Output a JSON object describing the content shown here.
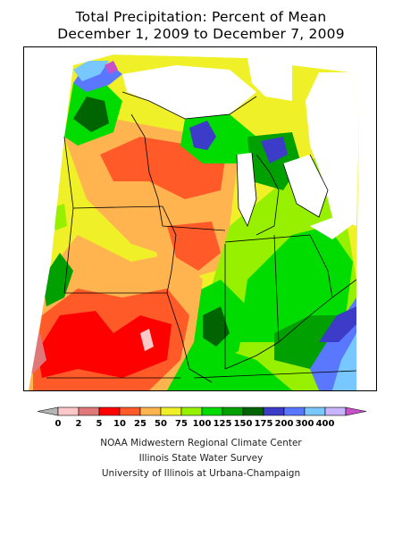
{
  "title": {
    "line1": "Total Precipitation: Percent of Mean",
    "line2": "December 1, 2009 to December 7, 2009"
  },
  "legend": {
    "labels": [
      "0",
      "2",
      "5",
      "10",
      "25",
      "50",
      "75",
      "100",
      "125",
      "150",
      "175",
      "200",
      "300",
      "400"
    ],
    "colors": [
      "#b4b4b4",
      "#ffc8c8",
      "#e0787a",
      "#ff0000",
      "#ff5a28",
      "#ffb450",
      "#f0f028",
      "#96f000",
      "#00dc00",
      "#00a000",
      "#006400",
      "#3c3cc8",
      "#5a78ff",
      "#78c8ff",
      "#c8b4ff",
      "#c850c8"
    ]
  },
  "credits": [
    "NOAA Midwestern Regional Climate Center",
    "Illinois State Water Survey",
    "University of Illinois at Urbana-Champaign"
  ]
}
